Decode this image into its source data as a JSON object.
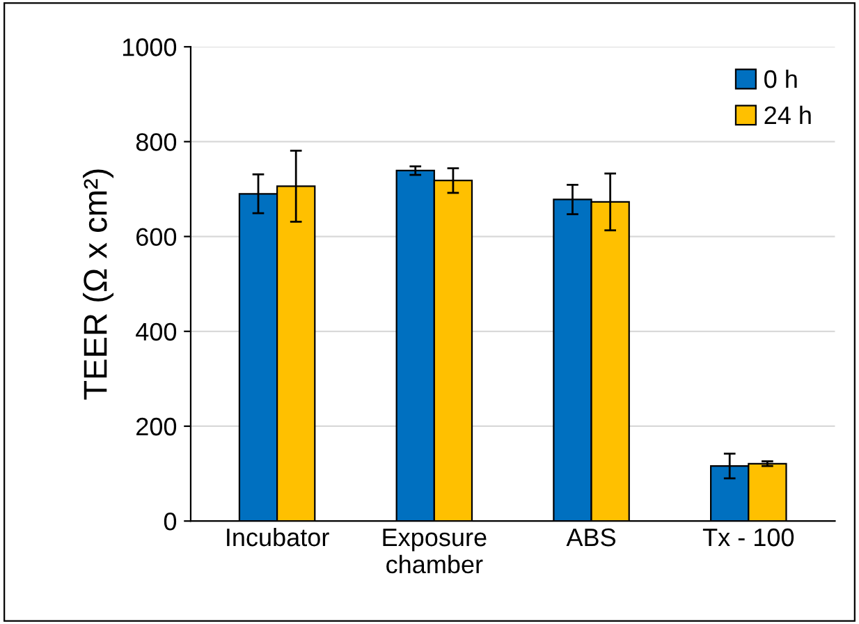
{
  "chart_data": {
    "type": "bar",
    "ylabel": "TEER (Ω x cm²)",
    "categories": [
      "Incubator",
      "Exposure\nchamber",
      "ABS",
      "Tx - 100"
    ],
    "series": [
      {
        "name": "0 h",
        "color": "#0070c0",
        "values": [
          690,
          739,
          678,
          116
        ],
        "errors": [
          41,
          9,
          31,
          26
        ]
      },
      {
        "name": "24 h",
        "color": "#ffc000",
        "values": [
          706,
          718,
          673,
          121
        ],
        "errors": [
          75,
          26,
          60,
          5
        ]
      }
    ],
    "ylim": [
      0,
      1000
    ],
    "yticks": [
      0,
      200,
      400,
      600,
      800,
      1000
    ],
    "grid": "y",
    "legend": "top right"
  }
}
